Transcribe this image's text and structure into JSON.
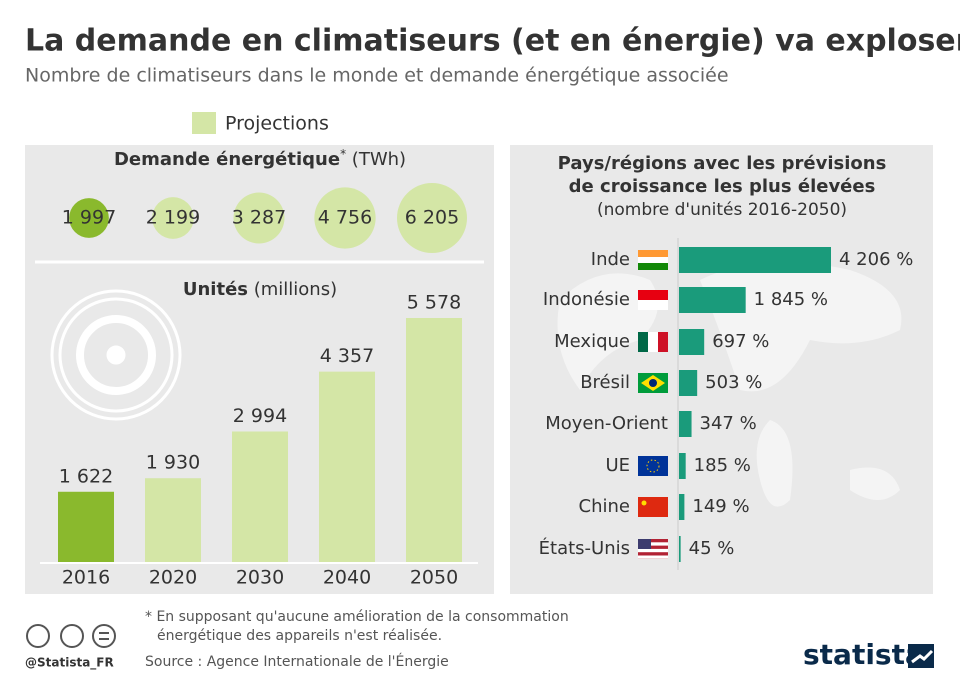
{
  "title": "La demande en climatiseurs (et en énergie) va exploser",
  "subtitle": "Nombre de climatiseurs dans le monde et demande énergétique associée",
  "legend": {
    "label": "Projections",
    "color": "#d4e6a6"
  },
  "chart_data": [
    {
      "type": "bubble",
      "title": "Demande énergétique",
      "title_mark": "*",
      "unit": "(TWh)",
      "categories": [
        "2016",
        "2020",
        "2030",
        "2040",
        "2050"
      ],
      "values": [
        1997,
        2199,
        3287,
        4756,
        6205
      ],
      "value_labels": [
        "1 997",
        "2 199",
        "3 287",
        "4 756",
        "6 205"
      ],
      "colors": [
        "#8ab92d",
        "#d4e6a6",
        "#d4e6a6",
        "#d4e6a6",
        "#d4e6a6"
      ]
    },
    {
      "type": "bar",
      "title": "Unités",
      "unit": "(millions)",
      "categories": [
        "2016",
        "2020",
        "2030",
        "2040",
        "2050"
      ],
      "values": [
        1622,
        1930,
        2994,
        4357,
        5578
      ],
      "value_labels": [
        "1 622",
        "1 930",
        "2 994",
        "4 357",
        "5 578"
      ],
      "colors": [
        "#8ab92d",
        "#d4e6a6",
        "#d4e6a6",
        "#d4e6a6",
        "#d4e6a6"
      ]
    },
    {
      "type": "barh",
      "title": [
        "Pays/régions avec les prévisions",
        "de croissance les plus élevées",
        "(nombre d'unités 2016-2050)"
      ],
      "categories": [
        "Inde",
        "Indonésie",
        "Mexique",
        "Brésil",
        "Moyen-Orient",
        "UE",
        "Chine",
        "États-Unis"
      ],
      "values": [
        4206,
        1845,
        697,
        503,
        347,
        185,
        149,
        45
      ],
      "value_labels": [
        "4 206 %",
        "1 845 %",
        "697 %",
        "503 %",
        "347 %",
        "185 %",
        "149 %",
        "45 %"
      ],
      "color": "#1a9b7b"
    }
  ],
  "footer": {
    "note": [
      "* En supposant qu'aucune amélioration de la consommation",
      "énergétique des appareils n'est réalisée."
    ],
    "source": "Source : Agence Internationale de l'Énergie",
    "handle": "@Statista_FR",
    "brand": "statista"
  }
}
